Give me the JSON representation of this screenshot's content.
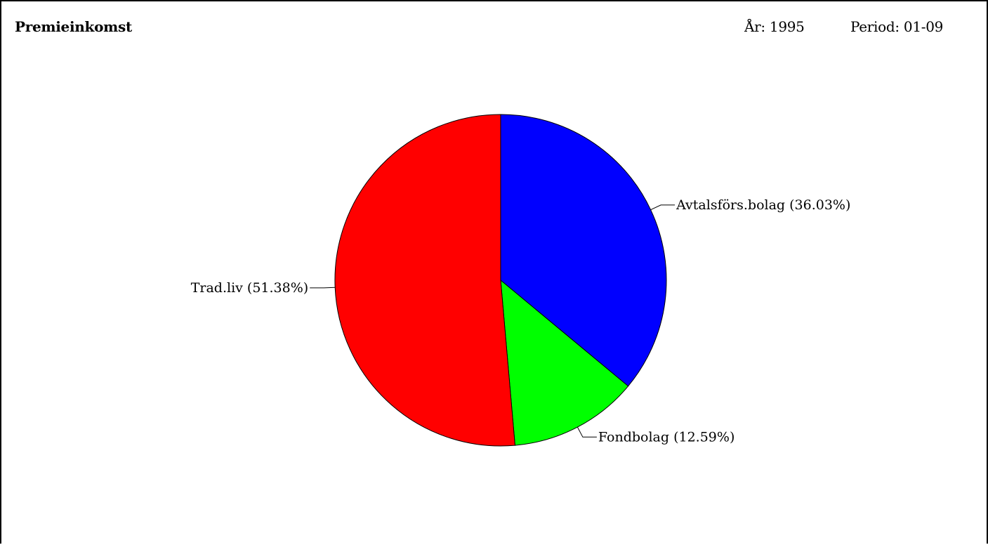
{
  "header": {
    "title": "Premieinkomst",
    "year_label": "År: 1995",
    "period_label": "Period: 01-09"
  },
  "chart_data": {
    "type": "pie",
    "title": "Premieinkomst",
    "slices": [
      {
        "label": "Avtalsförs.bolag (36.03%)",
        "value": 36.03,
        "color": "#0000ff"
      },
      {
        "label": "Fondbolag (12.59%)",
        "value": 12.59,
        "color": "#00ff00"
      },
      {
        "label": "Trad.liv (51.38%)",
        "value": 51.38,
        "color": "#ff0000"
      }
    ],
    "start_angle": "12 o'clock",
    "direction": "clockwise",
    "legend": "none"
  }
}
